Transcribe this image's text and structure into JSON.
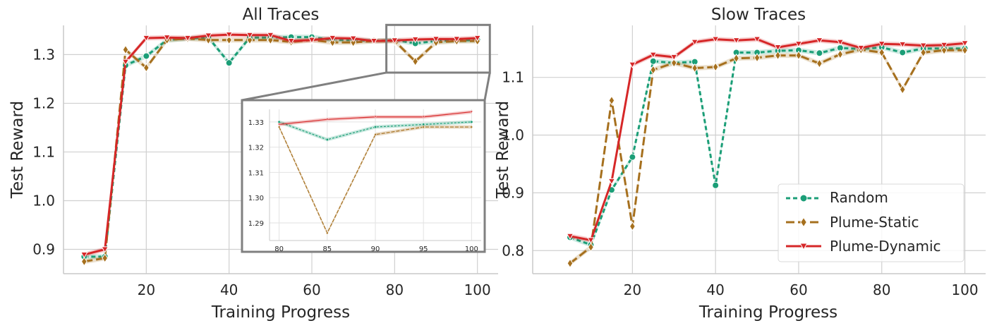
{
  "colors": {
    "random": "#1b9e77",
    "plume_static": "#a6701e",
    "plume_dynamic": "#d62728",
    "grid": "#d0d0d0",
    "spine": "#c8c8c8",
    "inset_frame": "#808080"
  },
  "chart_data": [
    {
      "type": "line",
      "title": "All Traces",
      "xlabel": "Training Progress",
      "ylabel": "Test Reward",
      "xlim": [
        0,
        105
      ],
      "ylim": [
        0.85,
        1.36
      ],
      "xticks": [
        20,
        40,
        60,
        80,
        100
      ],
      "xtick_labels": [
        "20",
        "40",
        "60",
        "80",
        "100"
      ],
      "yticks": [
        0.9,
        1.0,
        1.1,
        1.2,
        1.3
      ],
      "ytick_labels": [
        "0.9",
        "1.0",
        "1.1",
        "1.2",
        "1.3"
      ],
      "x": [
        5,
        10,
        15,
        20,
        25,
        30,
        35,
        40,
        45,
        50,
        55,
        60,
        65,
        70,
        75,
        80,
        85,
        90,
        95,
        100
      ],
      "series": [
        {
          "name": "Random",
          "key": "random",
          "marker": "circle",
          "dash": "6,4",
          "values": [
            0.885,
            0.885,
            1.278,
            1.297,
            1.33,
            1.333,
            1.335,
            1.283,
            1.335,
            1.335,
            1.336,
            1.336,
            1.33,
            1.33,
            1.328,
            1.33,
            1.323,
            1.328,
            1.329,
            1.33
          ]
        },
        {
          "name": "Plume-Static",
          "key": "plume_static",
          "marker": "diamond",
          "dash": "12,5",
          "values": [
            0.875,
            0.882,
            1.31,
            1.273,
            1.33,
            1.333,
            1.33,
            1.33,
            1.33,
            1.33,
            1.326,
            1.33,
            1.325,
            1.325,
            1.328,
            1.328,
            1.286,
            1.325,
            1.328,
            1.328
          ]
        },
        {
          "name": "Plume-Dynamic",
          "key": "plume_dynamic",
          "marker": "triangle",
          "dash": "",
          "values": [
            0.889,
            0.9,
            1.285,
            1.334,
            1.335,
            1.334,
            1.339,
            1.341,
            1.34,
            1.34,
            1.328,
            1.33,
            1.334,
            1.333,
            1.328,
            1.329,
            1.331,
            1.332,
            1.332,
            1.334
          ]
        }
      ],
      "inset": {
        "xlim": [
          79,
          101
        ],
        "ylim": [
          1.283,
          1.335
        ],
        "xticks": [
          80,
          85,
          90,
          95,
          100
        ],
        "xtick_labels": [
          "80",
          "85",
          "90",
          "95",
          "100"
        ],
        "yticks": [
          1.29,
          1.3,
          1.31,
          1.32,
          1.33
        ],
        "ytick_labels": [
          "1.29",
          "1.30",
          "1.31",
          "1.32",
          "1.33"
        ],
        "zoom_region": {
          "x": [
            78,
            103
          ],
          "y": [
            1.263,
            1.361
          ]
        }
      }
    },
    {
      "type": "line",
      "title": "Slow Traces",
      "xlabel": "Training Progress",
      "ylabel": "Test Reward",
      "xlim": [
        -4,
        105
      ],
      "ylim": [
        0.76,
        1.19
      ],
      "xticks": [
        20,
        40,
        60,
        80,
        100
      ],
      "xtick_labels": [
        "20",
        "40",
        "60",
        "80",
        "100"
      ],
      "yticks": [
        0.8,
        0.9,
        1.0,
        1.1
      ],
      "ytick_labels": [
        "0.8",
        "0.9",
        "1.0",
        "1.1"
      ],
      "legend": "lower-right",
      "x": [
        5,
        10,
        15,
        20,
        25,
        30,
        35,
        40,
        45,
        50,
        55,
        60,
        65,
        70,
        75,
        80,
        85,
        90,
        95,
        100
      ],
      "series": [
        {
          "name": "Random",
          "key": "random",
          "marker": "circle",
          "dash": "6,4",
          "values": [
            0.823,
            0.81,
            0.905,
            0.962,
            1.128,
            1.125,
            1.127,
            0.913,
            1.143,
            1.143,
            1.146,
            1.147,
            1.142,
            1.151,
            1.149,
            1.152,
            1.143,
            1.15,
            1.15,
            1.15
          ]
        },
        {
          "name": "Plume-Static",
          "key": "plume_static",
          "marker": "diamond",
          "dash": "12,5",
          "values": [
            0.778,
            0.806,
            1.06,
            0.842,
            1.113,
            1.125,
            1.116,
            1.118,
            1.133,
            1.134,
            1.138,
            1.138,
            1.124,
            1.14,
            1.148,
            1.143,
            1.079,
            1.143,
            1.147,
            1.147
          ]
        },
        {
          "name": "Plume-Dynamic",
          "key": "plume_dynamic",
          "marker": "triangle",
          "dash": "",
          "values": [
            0.825,
            0.818,
            0.92,
            1.122,
            1.139,
            1.135,
            1.161,
            1.166,
            1.164,
            1.166,
            1.152,
            1.158,
            1.164,
            1.161,
            1.151,
            1.158,
            1.157,
            1.155,
            1.156,
            1.159
          ]
        }
      ]
    }
  ]
}
